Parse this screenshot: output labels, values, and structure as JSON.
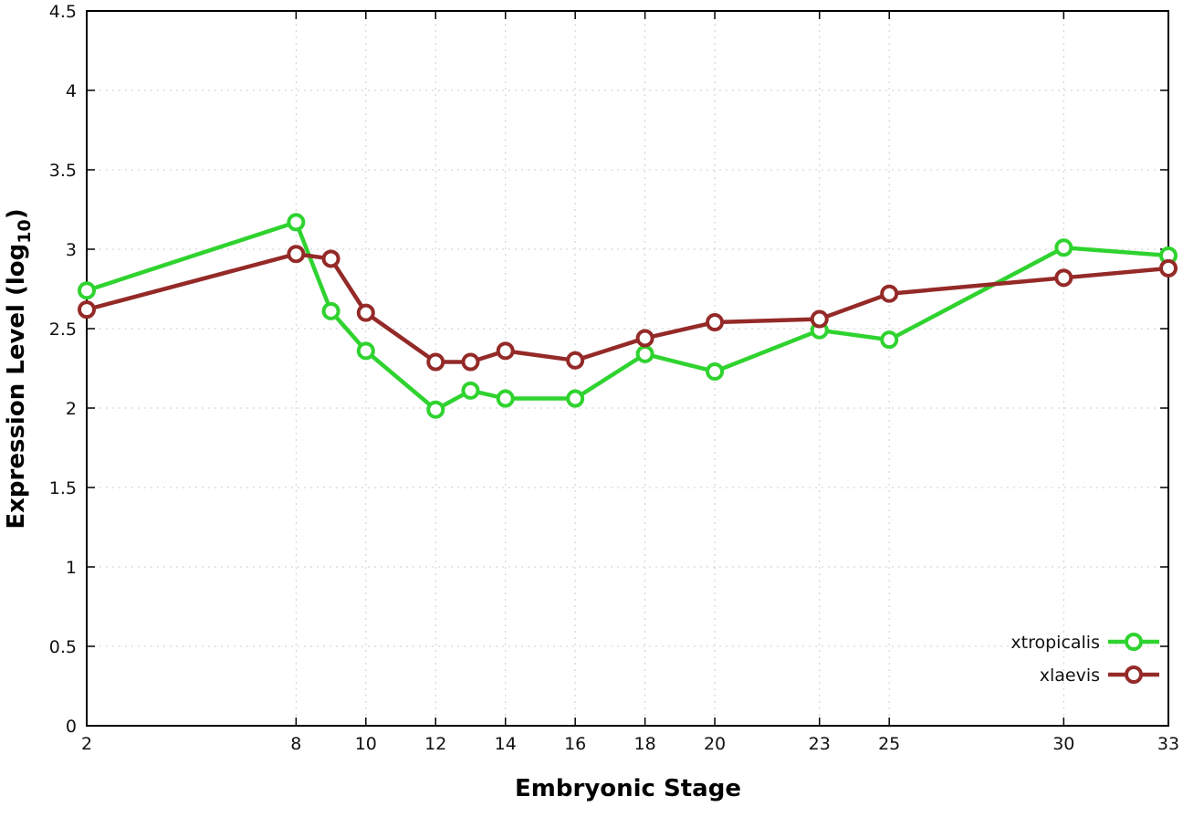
{
  "chart_data": {
    "type": "line",
    "xlabel": "Embryonic Stage",
    "ylabel": "Expression Level (log10)",
    "ylabel_prefix": "Expression Level (log",
    "ylabel_sub": "10",
    "ylabel_suffix": ")",
    "xlim": [
      2,
      33
    ],
    "ylim": [
      0,
      4.5
    ],
    "x_ticks": [
      2,
      8,
      10,
      12,
      14,
      16,
      18,
      20,
      23,
      25,
      30,
      33
    ],
    "x_tick_labels": [
      "2",
      "8",
      "10",
      "12",
      "14",
      "16",
      "18",
      "20",
      "23",
      "25",
      "30",
      "33"
    ],
    "y_ticks": [
      0,
      0.5,
      1,
      1.5,
      2,
      2.5,
      3,
      3.5,
      4,
      4.5
    ],
    "y_tick_labels": [
      "0",
      "0.5",
      "1",
      "1.5",
      "2",
      "2.5",
      "3",
      "3.5",
      "4",
      "4.5"
    ],
    "grid": true,
    "legend_position": "bottom-right-inside",
    "marker": "open-circle",
    "x": [
      2,
      8,
      9,
      10,
      12,
      13,
      14,
      16,
      18,
      20,
      23,
      25,
      30,
      33
    ],
    "series": [
      {
        "name": "xtropicalis",
        "color": "#2fd32f",
        "values": [
          2.74,
          3.17,
          2.61,
          2.36,
          1.99,
          2.11,
          2.06,
          2.06,
          2.34,
          2.23,
          2.49,
          2.43,
          3.01,
          2.96
        ]
      },
      {
        "name": "xlaevis",
        "color": "#942a28",
        "values": [
          2.62,
          2.97,
          2.94,
          2.6,
          2.29,
          2.29,
          2.36,
          2.3,
          2.44,
          2.54,
          2.56,
          2.72,
          2.82,
          2.88
        ]
      }
    ]
  }
}
